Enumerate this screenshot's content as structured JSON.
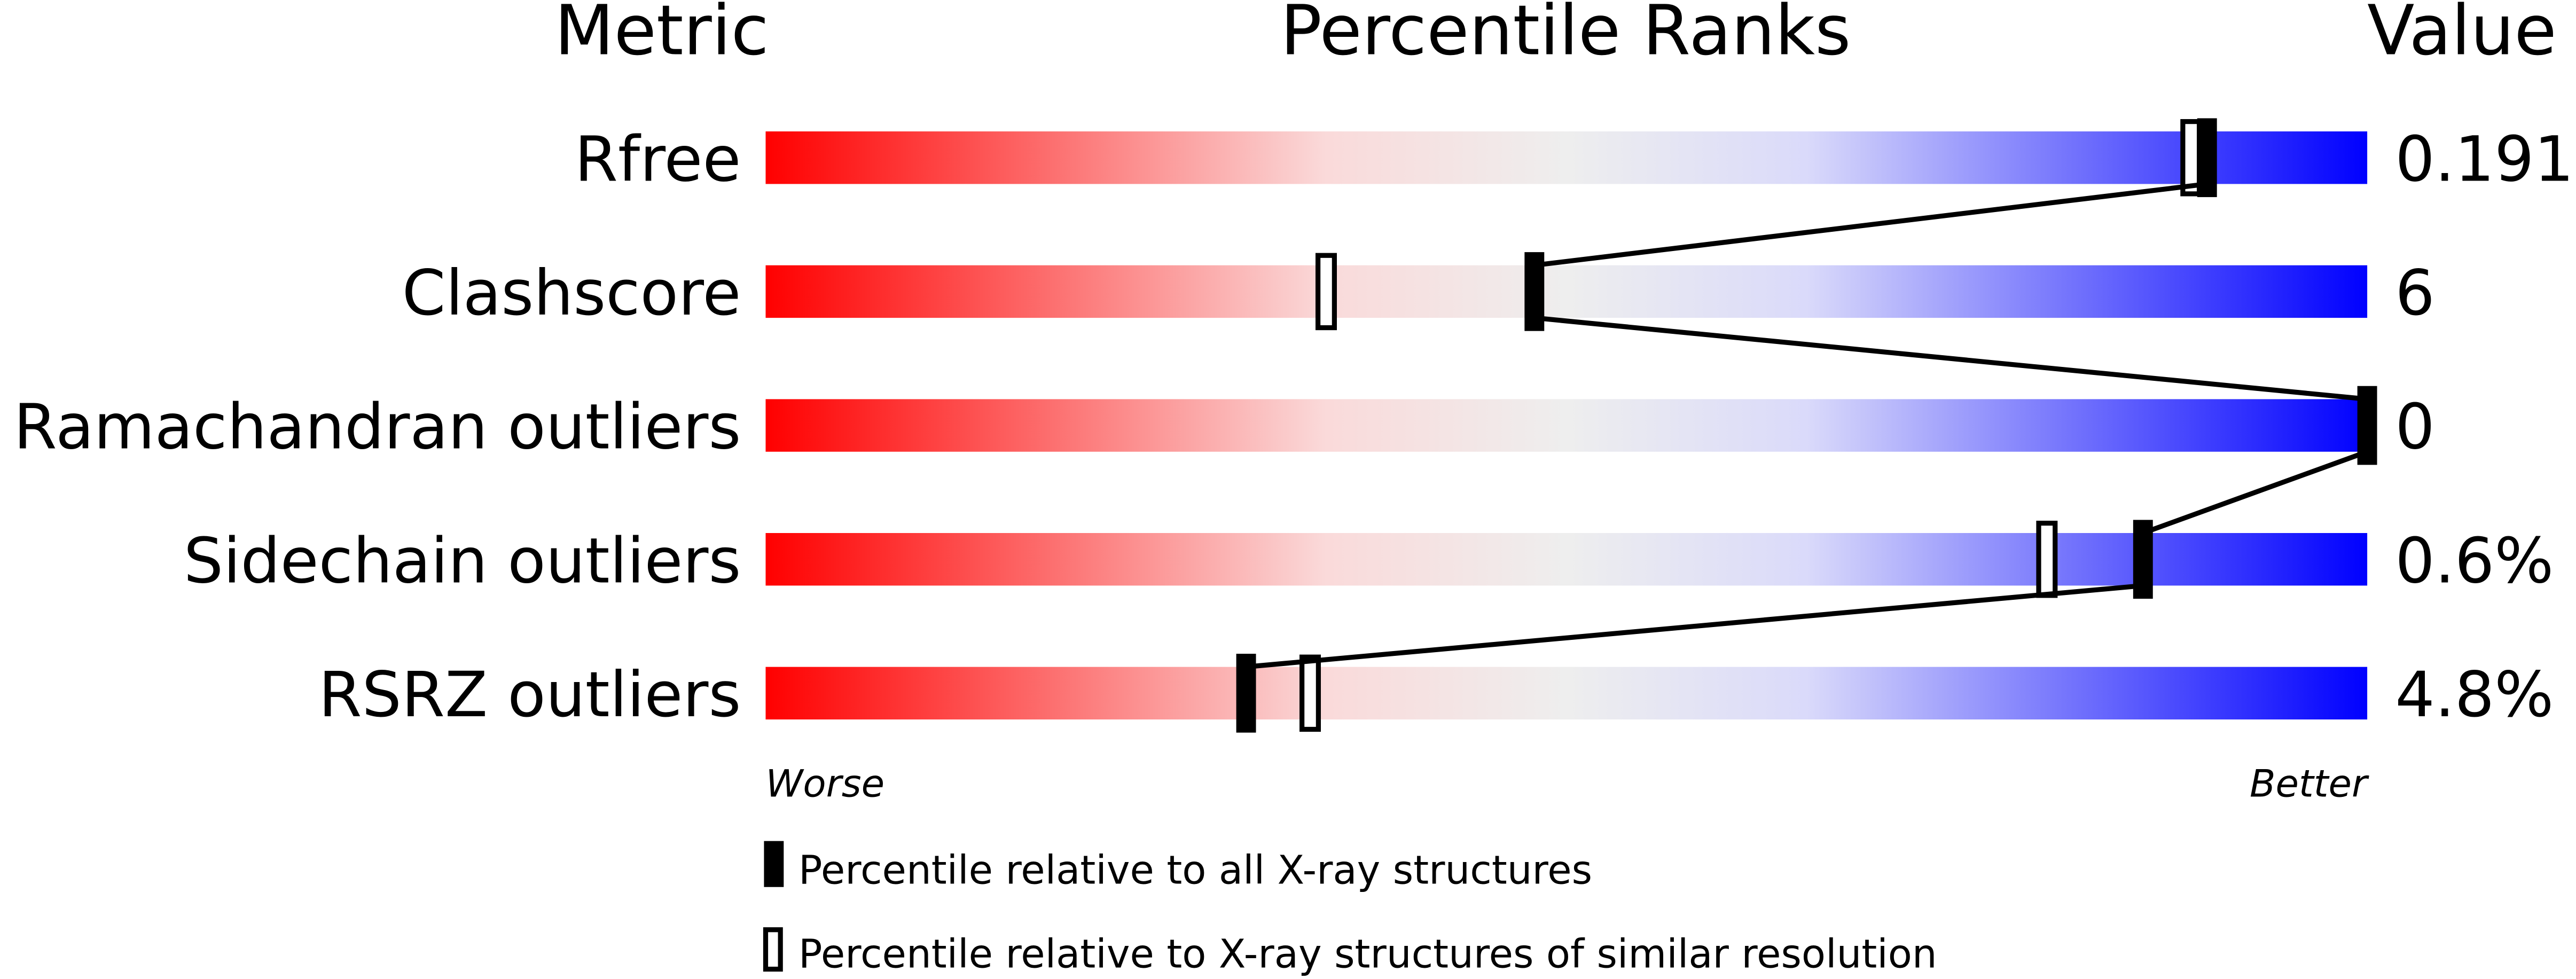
{
  "chart_data": {
    "type": "percentile-bar",
    "headers": {
      "metric": "Metric",
      "ranks": "Percentile Ranks",
      "value": "Value"
    },
    "xlim": [
      0,
      100
    ],
    "axis_labels": {
      "left": "Worse",
      "right": "Better"
    },
    "gradient_colors": [
      "#ff0000",
      "#fadada",
      "#eeeeee",
      "#dadafa",
      "#0000ff"
    ],
    "rows": [
      {
        "metric": "Rfree",
        "value": "0.191",
        "percentile_all": 90,
        "percentile_similar": 89
      },
      {
        "metric": "Clashscore",
        "value": "6",
        "percentile_all": 48,
        "percentile_similar": 35
      },
      {
        "metric": "Ramachandran outliers",
        "value": "0",
        "percentile_all": 100,
        "percentile_similar": null
      },
      {
        "metric": "Sidechain outliers",
        "value": "0.6%",
        "percentile_all": 86,
        "percentile_similar": 80
      },
      {
        "metric": "RSRZ outliers",
        "value": "4.8%",
        "percentile_all": 30,
        "percentile_similar": 34
      }
    ],
    "legend": {
      "all": "Percentile relative to all X-ray structures",
      "similar": "Percentile relative to X-ray structures of similar resolution"
    }
  }
}
